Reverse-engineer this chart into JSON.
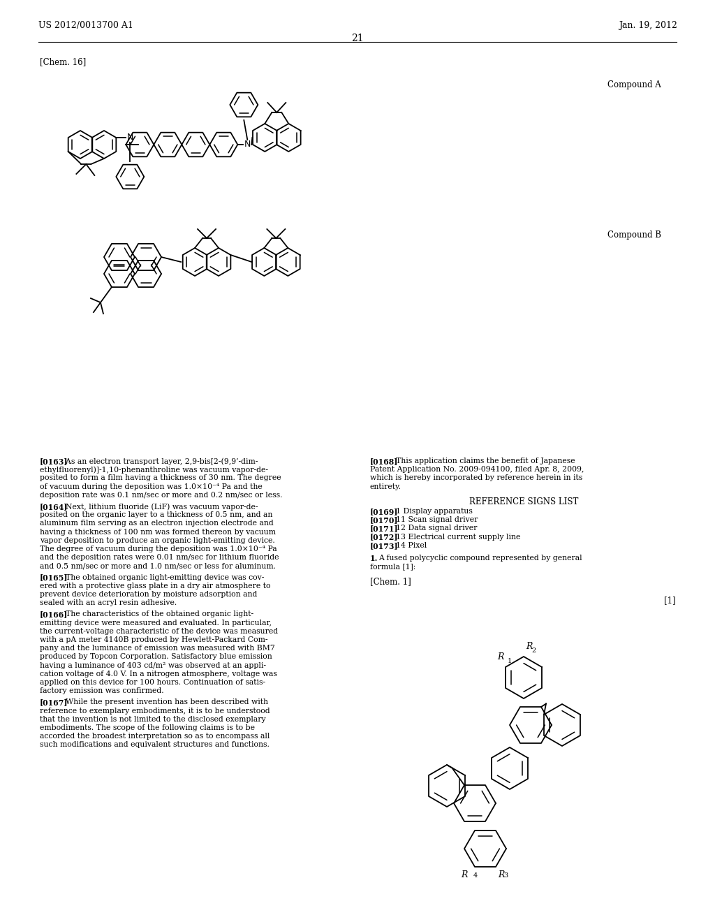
{
  "header_left": "US 2012/0013700 A1",
  "header_right": "Jan. 19, 2012",
  "page_number": "21",
  "chem_label": "[Chem. 16]",
  "compound_a_label": "Compound A",
  "compound_b_label": "Compound B",
  "background_color": "#ffffff",
  "text_color": "#000000",
  "para_0163": "[0163]",
  "para_0163_text": "  As an electron transport layer, 2,9-bis[2-(9,9’-dim-\nethylfluorenyl)]-1,10-phenanthroline was vacuum vapor-de-\nposited to form a film having a thickness of 30 nm. The degree\nof vacuum during the deposition was 1.0×10⁻⁴ Pa and the\ndeposition rate was 0.1 nm/sec or more and 0.2 nm/sec or less.",
  "para_0164": "[0164]",
  "para_0164_text": "  Next, lithium fluoride (LiF) was vacuum vapor-de-\nposited on the organic layer to a thickness of 0.5 nm, and an\naluminum film serving as an electron injection electrode and\nhaving a thickness of 100 nm was formed thereon by vacuum\nvapor deposition to produce an organic light-emitting device.\nThe degree of vacuum during the deposition was 1.0×10⁻⁴ Pa\nand the deposition rates were 0.01 nm/sec for lithium fluoride\nand 0.5 nm/sec or more and 1.0 nm/sec or less for aluminum.",
  "para_0165": "[0165]",
  "para_0165_text": "  The obtained organic light-emitting device was cov-\nered with a protective glass plate in a dry air atmosphere to\nprevent device deterioration by moisture adsorption and\nsealed with an acryl resin adhesive.",
  "para_0166": "[0166]",
  "para_0166_text": "  The characteristics of the obtained organic light-\nemitting device were measured and evaluated. In particular,\nthe current-voltage characteristic of the device was measured\nwith a pA meter 4140B produced by Hewlett-Packard Com-\npany and the luminance of emission was measured with BM7\nproduced by Topcon Corporation. Satisfactory blue emission\nhaving a luminance of 403 cd/m² was observed at an appli-\ncation voltage of 4.0 V. In a nitrogen atmosphere, voltage was\napplied on this device for 100 hours. Continuation of satis-\nfactory emission was confirmed.",
  "para_0167": "[0167]",
  "para_0167_text": "  While the present invention has been described with\nreference to exemplary embodiments, it is to be understood\nthat the invention is not limited to the disclosed exemplary\nembodiments. The scope of the following claims is to be\naccorded the broadest interpretation so as to encompass all\nsuch modifications and equivalent structures and functions.",
  "para_0168": "[0168]",
  "para_0168_text": "  This application claims the benefit of Japanese\nPatent Application No. 2009-094100, filed Apr. 8, 2009,\nwhich is hereby incorporated by reference herein in its\nentirety.",
  "ref_signs_title": "REFERENCE SIGNS LIST",
  "ref_0169": "[0169]",
  "ref_0169_text": "  1 Display apparatus",
  "ref_0170": "[0170]",
  "ref_0170_text": "  11 Scan signal driver",
  "ref_0171": "[0171]",
  "ref_0171_text": "  12 Data signal driver",
  "ref_0172": "[0172]",
  "ref_0172_text": "  13 Electrical current supply line",
  "ref_0173": "[0173]",
  "ref_0173_text": "  14 Pixel",
  "claim_1": "1. A fused polycyclic compound represented by general\nformula [1]:",
  "chem1_label": "[Chem. 1]",
  "formula_ref": "[1]"
}
